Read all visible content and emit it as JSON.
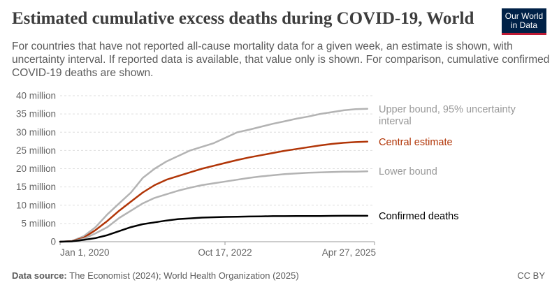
{
  "header": {
    "title": "Estimated cumulative excess deaths during COVID-19, World",
    "subtitle": "For countries that have not reported all-cause mortality data for a given week, an estimate is shown, with uncertainty interval. If reported data is available, that value only is shown. For comparison, cumulative confirmed COVID-19 deaths are shown.",
    "logo_line1": "Our World",
    "logo_line2": "in Data"
  },
  "footer": {
    "source_label": "Data source:",
    "source_text": "The Economist (2024); World Health Organization (2025)",
    "license": "CC BY"
  },
  "colors": {
    "upper": "#b3b3b3",
    "central": "#b13507",
    "lower": "#b3b3b3",
    "confirmed": "#000000",
    "grid": "#dddddd",
    "axis_text": "#666666",
    "brand_bg": "#002147",
    "brand_accent": "#be1a34"
  },
  "chart_data": {
    "type": "line",
    "title": "Estimated cumulative excess deaths during COVID-19, World",
    "ylabel": "",
    "xlabel": "",
    "ylim": [
      0,
      40000000
    ],
    "yticks": [
      {
        "value": 0,
        "label": "0"
      },
      {
        "value": 5000000,
        "label": "5 million"
      },
      {
        "value": 10000000,
        "label": "10 million"
      },
      {
        "value": 15000000,
        "label": "15 million"
      },
      {
        "value": 20000000,
        "label": "20 million"
      },
      {
        "value": 25000000,
        "label": "25 million"
      },
      {
        "value": 30000000,
        "label": "30 million"
      },
      {
        "value": 35000000,
        "label": "35 million"
      },
      {
        "value": 40000000,
        "label": "40 million"
      }
    ],
    "xlim": [
      2020.0,
      2025.32
    ],
    "xticks": [
      {
        "value": 2020.0,
        "label": "Jan 1, 2020"
      },
      {
        "value": 2022.79,
        "label": "Oct 17, 2022"
      },
      {
        "value": 2025.32,
        "label": "Apr 27, 2025"
      }
    ],
    "x": [
      2020.0,
      2020.2,
      2020.4,
      2020.6,
      2020.8,
      2021.0,
      2021.2,
      2021.4,
      2021.6,
      2021.8,
      2022.0,
      2022.2,
      2022.4,
      2022.6,
      2022.8,
      2023.0,
      2023.2,
      2023.4,
      2023.6,
      2023.8,
      2024.0,
      2024.2,
      2024.4,
      2024.6,
      2024.8,
      2025.0,
      2025.2
    ],
    "series": [
      {
        "name": "Upper bound, 95% uncertainty interval",
        "label": "Upper bound, 95% uncertainty\ninterval",
        "color_key": "upper",
        "width": 2.5,
        "values": [
          0,
          0.2,
          1.5,
          4,
          7.5,
          10.5,
          13.5,
          17.5,
          20,
          22,
          23.5,
          25,
          26,
          27,
          28.5,
          30,
          30.7,
          31.5,
          32.3,
          33,
          33.7,
          34.3,
          35,
          35.5,
          36,
          36.3,
          36.4
        ]
      },
      {
        "name": "Central estimate",
        "label": "Central estimate",
        "color_key": "central",
        "width": 2.5,
        "values": [
          0,
          0.15,
          1.1,
          3.2,
          5.7,
          8.5,
          11,
          13.5,
          15.5,
          17,
          18,
          19,
          20,
          20.8,
          21.6,
          22.4,
          23.1,
          23.7,
          24.3,
          24.9,
          25.4,
          25.9,
          26.4,
          26.8,
          27.1,
          27.3,
          27.4
        ]
      },
      {
        "name": "Lower bound",
        "label": "Lower bound",
        "color_key": "lower",
        "width": 2.5,
        "values": [
          0,
          0.1,
          0.8,
          2.3,
          4,
          6.5,
          8.5,
          10.5,
          12,
          13,
          14,
          14.8,
          15.5,
          16,
          16.5,
          17,
          17.5,
          17.9,
          18.2,
          18.5,
          18.7,
          18.9,
          19,
          19.1,
          19.2,
          19.2,
          19.3
        ]
      },
      {
        "name": "Confirmed deaths",
        "label": "Confirmed deaths",
        "color_key": "confirmed",
        "width": 2.5,
        "values": [
          0,
          0.1,
          0.5,
          1,
          1.8,
          2.9,
          4,
          4.8,
          5.3,
          5.8,
          6.2,
          6.4,
          6.6,
          6.7,
          6.8,
          6.85,
          6.9,
          6.95,
          7,
          7,
          7.02,
          7.05,
          7.05,
          7.08,
          7.1,
          7.1,
          7.1
        ]
      }
    ],
    "value_unit_multiplier": 1000000,
    "legend_position": "right, inline labels"
  }
}
